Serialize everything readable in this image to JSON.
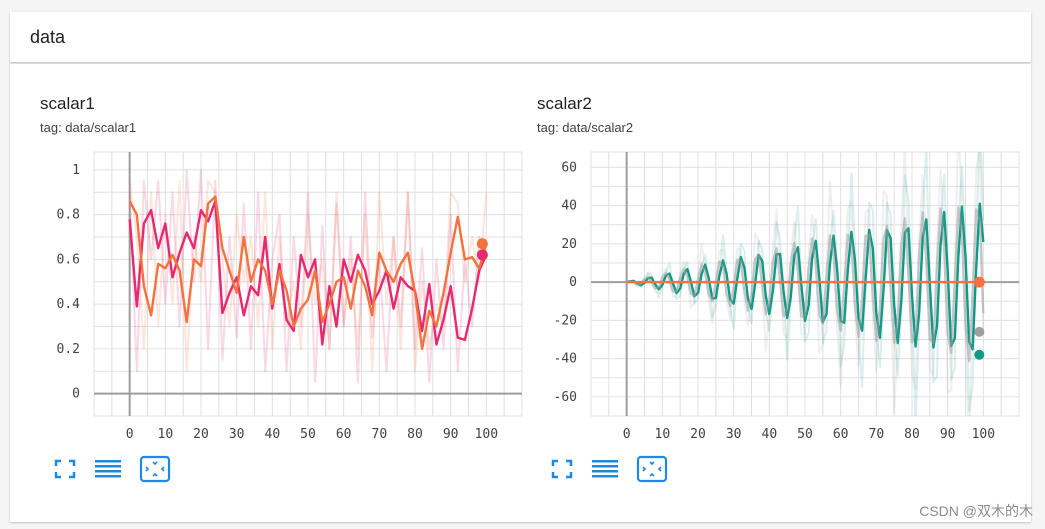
{
  "group": {
    "title": "data"
  },
  "watermark": "CSDN @双木的木",
  "colors": {
    "scalar1_series_a": "#e7296f",
    "scalar1_series_b": "#f4723e",
    "scalar2_series_a": "#0f9987",
    "scalar2_series_b": "#9e9e9e",
    "scalar2_series_c": "#f4723e",
    "toolbar_icon": "#1e88e5",
    "grid": "#e0e0e0",
    "axis": "#9e9e9e"
  },
  "toolbar_icons": [
    "fullscreen-icon",
    "toggle-y-log-icon",
    "fit-domain-icon"
  ],
  "chart_data": [
    {
      "type": "line",
      "title": "scalar1",
      "subtitle": "tag: data/scalar1",
      "xlim": [
        -10,
        110
      ],
      "ylim": [
        -0.1,
        1.08
      ],
      "xticks": [
        0,
        10,
        20,
        30,
        40,
        50,
        60,
        70,
        80,
        90,
        100
      ],
      "yticks": [
        0,
        0.2,
        0.4,
        0.6,
        0.8,
        1
      ],
      "ytick_labels": [
        "0",
        "0.2",
        "0.4",
        "0.6",
        "0.8",
        "1"
      ],
      "x": [
        0,
        2,
        4,
        6,
        8,
        10,
        12,
        14,
        16,
        18,
        20,
        22,
        24,
        26,
        28,
        30,
        32,
        34,
        36,
        38,
        40,
        42,
        44,
        46,
        48,
        50,
        52,
        54,
        56,
        58,
        60,
        62,
        64,
        66,
        68,
        70,
        72,
        74,
        76,
        78,
        80,
        82,
        84,
        86,
        88,
        90,
        92,
        94,
        96,
        98,
        100
      ],
      "series": [
        {
          "smoothed": [
            0.78,
            0.39,
            0.76,
            0.82,
            0.65,
            0.76,
            0.52,
            0.63,
            0.72,
            0.65,
            0.82,
            0.77,
            0.86,
            0.36,
            0.45,
            0.52,
            0.35,
            0.48,
            0.44,
            0.7,
            0.38,
            0.58,
            0.33,
            0.28,
            0.62,
            0.52,
            0.6,
            0.22,
            0.48,
            0.3,
            0.6,
            0.5,
            0.62,
            0.55,
            0.4,
            0.46,
            0.55,
            0.38,
            0.52,
            0.48,
            0.46,
            0.28,
            0.49,
            0.22,
            0.33,
            0.48,
            0.25,
            0.24,
            0.38,
            0.55,
            0.62
          ],
          "raw": [
            0.9,
            0.1,
            0.95,
            0.6,
            0.95,
            0.4,
            0.9,
            0.3,
            1.0,
            0.5,
            1.0,
            0.2,
            0.95,
            0.15,
            0.7,
            0.25,
            0.85,
            0.2,
            0.9,
            0.1,
            0.6,
            0.8,
            0.1,
            0.7,
            0.3,
            0.9,
            0.05,
            0.75,
            0.2,
            0.85,
            0.3,
            0.7,
            0.05,
            0.9,
            0.25,
            0.6,
            0.1,
            0.7,
            0.3,
            0.9,
            0.2,
            0.65,
            0.05,
            0.6,
            0.2,
            0.8,
            0.1,
            0.6,
            0.3,
            0.7,
            0.6
          ]
        },
        {
          "smoothed": [
            0.86,
            0.8,
            0.48,
            0.35,
            0.58,
            0.56,
            0.62,
            0.55,
            0.32,
            0.6,
            0.57,
            0.85,
            0.88,
            0.65,
            0.55,
            0.45,
            0.7,
            0.5,
            0.6,
            0.55,
            0.4,
            0.55,
            0.46,
            0.3,
            0.38,
            0.42,
            0.55,
            0.32,
            0.4,
            0.5,
            0.52,
            0.38,
            0.55,
            0.48,
            0.35,
            0.63,
            0.55,
            0.5,
            0.58,
            0.63,
            0.45,
            0.2,
            0.37,
            0.3,
            0.45,
            0.63,
            0.79,
            0.6,
            0.61,
            0.56,
            0.67
          ],
          "raw": [
            0.95,
            0.7,
            0.2,
            0.9,
            0.3,
            0.8,
            0.4,
            0.95,
            0.1,
            0.7,
            0.5,
            0.95,
            0.9,
            0.6,
            0.3,
            0.8,
            0.5,
            0.7,
            0.3,
            0.9,
            0.2,
            0.7,
            0.3,
            0.5,
            0.2,
            0.8,
            0.4,
            0.6,
            0.2,
            0.9,
            0.3,
            0.6,
            0.2,
            0.8,
            0.1,
            0.9,
            0.4,
            0.7,
            0.2,
            0.9,
            0.1,
            0.5,
            0.2,
            0.4,
            0.3,
            0.9,
            0.85,
            0.5,
            0.7,
            0.5,
            0.9
          ]
        }
      ]
    },
    {
      "type": "line",
      "title": "scalar2",
      "subtitle": "tag: data/scalar2",
      "xlim": [
        -10,
        110
      ],
      "ylim": [
        -70,
        68
      ],
      "xticks": [
        0,
        10,
        20,
        30,
        40,
        50,
        60,
        70,
        80,
        90,
        100
      ],
      "yticks": [
        -60,
        -40,
        -20,
        0,
        20,
        40,
        60
      ],
      "ytick_labels": [
        "-60",
        "-40",
        "-20",
        "0",
        "20",
        "40",
        "60"
      ],
      "osc_series": [
        {
          "phase": 0.0,
          "peak_amp": 42,
          "end_value": -38
        },
        {
          "phase": 0.9,
          "peak_amp": 44,
          "end_value": -26
        }
      ],
      "flat_series": {
        "value": 0
      }
    }
  ]
}
